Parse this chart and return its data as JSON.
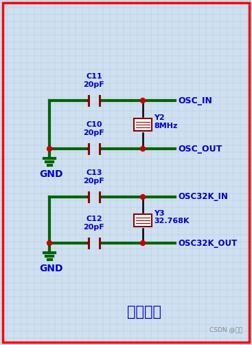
{
  "bg_color": "#cfe0f0",
  "border_color": "#ff0000",
  "wire_color": "#006400",
  "cap_wire_color": "#8b0000",
  "dot_color": "#cc0000",
  "crystal_color": "#8b0000",
  "text_color_blue": "#0000cc",
  "text_color_dark": "#000000",
  "text_color_gray": "#888888",
  "title": "晶振电路",
  "grid_color": "#aac8e0",
  "label_OSC_IN": "OSC_IN",
  "label_OSC_OUT": "OSC_OUT",
  "label_OSC32K_IN": "OSC32K_IN",
  "label_OSC32K_OUT": "OSC32K_OUT",
  "label_C11": "C11\n20pF",
  "label_C10": "C10\n20pF",
  "label_C13": "C13\n20pF",
  "label_C12": "C12\n20pF",
  "label_Y2": "Y2\n8MHz",
  "label_Y3": "Y3\n32.768K",
  "label_GND": "GND",
  "label_csdn": "CSDN @零梁"
}
